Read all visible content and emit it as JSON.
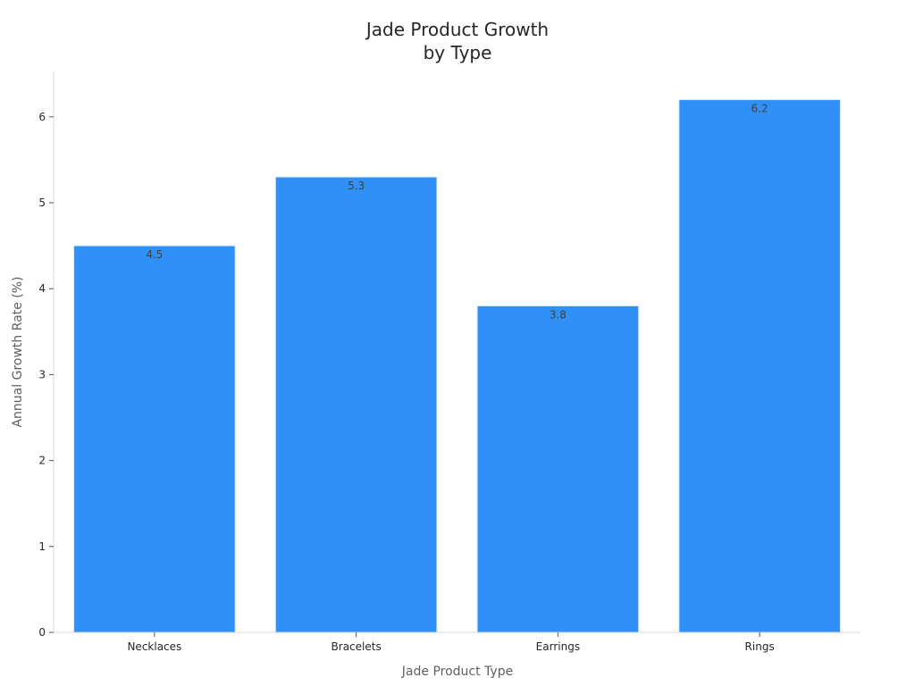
{
  "chart_data": {
    "type": "bar",
    "title_lines": [
      "Jade Product Growth",
      "by Type"
    ],
    "xlabel": "Jade Product Type",
    "ylabel": "Annual Growth Rate (%)",
    "categories": [
      "Necklaces",
      "Bracelets",
      "Earrings",
      "Rings"
    ],
    "values": [
      4.5,
      5.3,
      3.8,
      6.2
    ],
    "value_labels": [
      "4.5",
      "5.3",
      "3.8",
      "6.2"
    ],
    "ylim": [
      0,
      6.5
    ],
    "yticks": [
      0,
      1,
      2,
      3,
      4,
      5,
      6
    ],
    "grid": false,
    "legend": "none",
    "colors": {
      "bar": "#2f91f7",
      "bar_edge": "#d6e8fb"
    }
  }
}
